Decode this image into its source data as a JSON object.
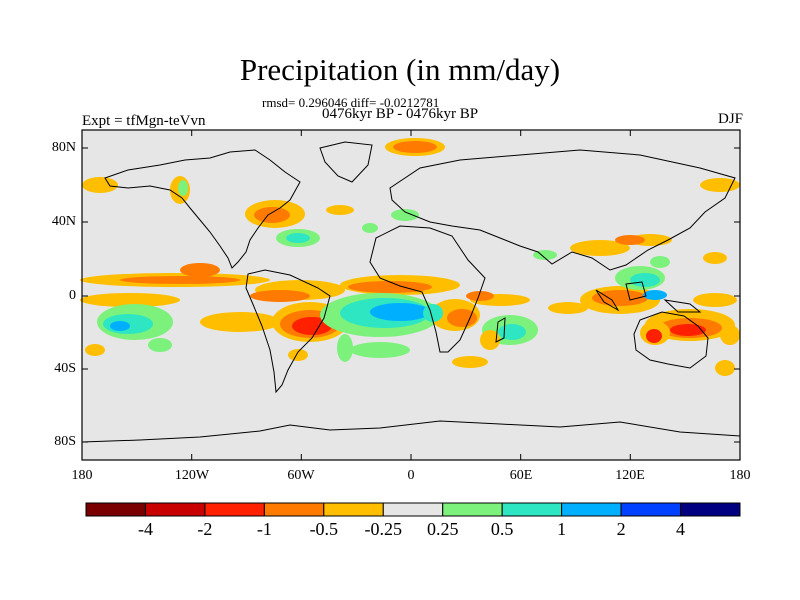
{
  "title": "Precipitation (in mm/day)",
  "stats": "rmsd= 0.296046 diff= -0.0212781",
  "period": "0476kyr BP - 0476kyr BP",
  "experiment": "Expt = tfMgn-teVvn",
  "season": "DJF",
  "lat_labels": [
    "80N",
    "40N",
    "0",
    "40S",
    "80S"
  ],
  "lon_labels": [
    "180",
    "120W",
    "60W",
    "0",
    "60E",
    "120E",
    "180"
  ],
  "colorbar": {
    "labels": [
      "-4",
      "-2",
      "-1",
      "-0.5",
      "-0.25",
      "0.25",
      "0.5",
      "1",
      "2",
      "4"
    ],
    "colors": [
      "#7a0000",
      "#c80000",
      "#ff2000",
      "#ff7a00",
      "#ffbf00",
      "#e6e6e6",
      "#7cf27c",
      "#2ee6c2",
      "#00b0ff",
      "#0040ff",
      "#000080"
    ]
  },
  "colors": {
    "background": "#e6e6e6",
    "dry_strong": "#ff2000",
    "dry": "#ff7a00",
    "dry_weak": "#ffbf00",
    "wet_weak": "#7cf27c",
    "wet": "#2ee6c2",
    "wet_strong": "#00b0ff",
    "coast": "#000000"
  }
}
